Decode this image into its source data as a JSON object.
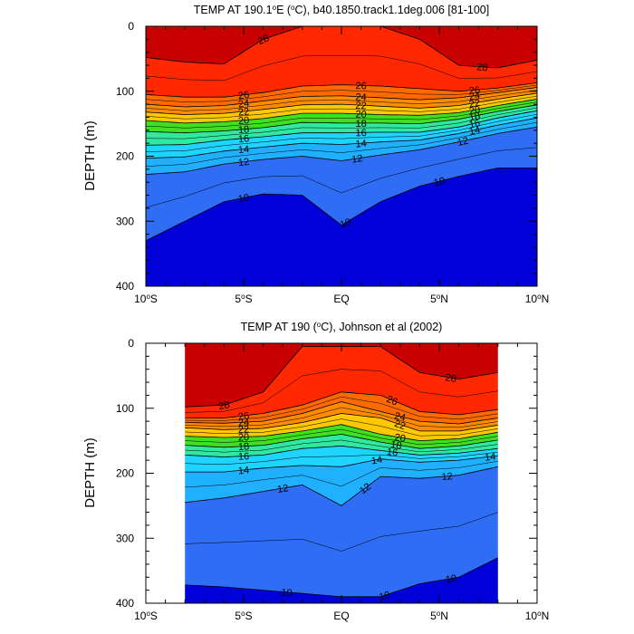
{
  "figure": {
    "panels": [
      {
        "title_pre": "TEMP AT 190.1",
        "title_sup": "o",
        "title_post": "E (",
        "title_sup2": "o",
        "title_end": "C), b40.1850.track1.1deg.006 [81-100]"
      },
      {
        "title_pre": "TEMP AT 190 (",
        "title_sup": "o",
        "title_post": "C), Johnson et al (2002)"
      }
    ]
  },
  "colors": {
    "scale": [
      "#0000d8",
      "#1a3ff0",
      "#2f6df5",
      "#2f8ff8",
      "#1fb0ff",
      "#1fd4ff",
      "#2ee8e0",
      "#30e8a0",
      "#10d850",
      "#40e020",
      "#a8e81a",
      "#ffc800",
      "#ffaa00",
      "#ff8c00",
      "#ff6a00",
      "#ff4a00",
      "#ff2800",
      "#e61400",
      "#c80000"
    ],
    "contour_line": "#000000"
  },
  "chart_data": [
    {
      "type": "contour",
      "ylabel": "DEPTH (m)",
      "xlabel": "",
      "xlim": [
        -10,
        10
      ],
      "ylim": [
        0,
        400
      ],
      "y_inverted": true,
      "x_tick_labels": [
        {
          "x": -10,
          "main": "10",
          "sup": "o",
          "tail": "S"
        },
        {
          "x": -5,
          "main": "5",
          "sup": "o",
          "tail": "S"
        },
        {
          "x": 0,
          "main": "EQ",
          "sup": "",
          "tail": ""
        },
        {
          "x": 5,
          "main": "5",
          "sup": "o",
          "tail": "N"
        },
        {
          "x": 10,
          "main": "10",
          "sup": "o",
          "tail": "N"
        }
      ],
      "y_ticks": [
        0,
        100,
        200,
        300,
        400
      ],
      "data_extent_x": [
        -10,
        10
      ],
      "contour_levels": [
        10,
        12,
        14,
        16,
        18,
        20,
        22,
        24,
        26,
        28
      ],
      "isotherm_depths_x": [
        -10,
        -8,
        -6,
        -4,
        -2,
        0,
        2,
        4,
        6,
        8,
        10
      ],
      "isotherm_depths": {
        "28": [
          48,
          55,
          58,
          20,
          0,
          0,
          0,
          20,
          60,
          64,
          52
        ],
        "26": [
          105,
          109,
          109,
          102,
          92,
          90,
          92,
          96,
          100,
          95,
          87
        ],
        "24": [
          120,
          124,
          122,
          115,
          108,
          107,
          110,
          113,
          110,
          102,
          94
        ],
        "22": [
          132,
          136,
          134,
          128,
          121,
          120,
          123,
          126,
          122,
          112,
          103
        ],
        "20": [
          145,
          149,
          147,
          142,
          134,
          134,
          136,
          137,
          133,
          122,
          112
        ],
        "18": [
          162,
          164,
          161,
          156,
          148,
          149,
          149,
          150,
          143,
          131,
          121
        ],
        "16": [
          183,
          182,
          175,
          170,
          164,
          164,
          163,
          163,
          155,
          141,
          130
        ],
        "14": [
          203,
          201,
          192,
          186,
          180,
          182,
          178,
          175,
          165,
          152,
          141
        ],
        "12": [
          228,
          224,
          212,
          205,
          200,
          207,
          198,
          190,
          178,
          165,
          155
        ],
        "10": [
          330,
          300,
          270,
          258,
          260,
          306,
          270,
          246,
          231,
          218,
          218
        ]
      },
      "isotherm_labels": [
        {
          "level": 28,
          "x": -4.0
        },
        {
          "level": 28,
          "x": 7.2
        },
        {
          "level": 26,
          "x": -5.0
        },
        {
          "level": 26,
          "x": 1.0
        },
        {
          "level": 26,
          "x": 6.8
        },
        {
          "level": 24,
          "x": -5.0
        },
        {
          "level": 24,
          "x": 1.0
        },
        {
          "level": 24,
          "x": 6.8
        },
        {
          "level": 22,
          "x": -5.0
        },
        {
          "level": 22,
          "x": 1.0
        },
        {
          "level": 22,
          "x": 6.8
        },
        {
          "level": 20,
          "x": -5.0
        },
        {
          "level": 20,
          "x": 1.0
        },
        {
          "level": 20,
          "x": 6.8
        },
        {
          "level": 18,
          "x": -5.0
        },
        {
          "level": 18,
          "x": 1.0
        },
        {
          "level": 18,
          "x": 6.8
        },
        {
          "level": 16,
          "x": -5.0
        },
        {
          "level": 16,
          "x": 1.0
        },
        {
          "level": 16,
          "x": 6.8
        },
        {
          "level": 14,
          "x": -5.0
        },
        {
          "level": 14,
          "x": 1.0
        },
        {
          "level": 14,
          "x": 6.8
        },
        {
          "level": 12,
          "x": -5.0
        },
        {
          "level": 12,
          "x": 0.8
        },
        {
          "level": 12,
          "x": 6.2
        },
        {
          "level": 10,
          "x": -5.0
        },
        {
          "level": 10,
          "x": 0.2
        },
        {
          "level": 10,
          "x": 5.0
        }
      ]
    },
    {
      "type": "contour",
      "ylabel": "DEPTH (m)",
      "xlabel": "",
      "xlim": [
        -10,
        10
      ],
      "ylim": [
        0,
        400
      ],
      "y_inverted": true,
      "x_tick_labels": [
        {
          "x": -10,
          "main": "10",
          "sup": "o",
          "tail": "S"
        },
        {
          "x": -5,
          "main": "5",
          "sup": "o",
          "tail": "S"
        },
        {
          "x": 0,
          "main": "EQ",
          "sup": "",
          "tail": ""
        },
        {
          "x": 5,
          "main": "5",
          "sup": "o",
          "tail": "N"
        },
        {
          "x": 10,
          "main": "10",
          "sup": "o",
          "tail": "N"
        }
      ],
      "y_ticks": [
        0,
        100,
        200,
        300,
        400
      ],
      "data_extent_x": [
        -8,
        8
      ],
      "contour_levels": [
        10,
        12,
        14,
        16,
        18,
        20,
        22,
        24,
        26,
        28
      ],
      "isotherm_depths_x": [
        -8,
        -6,
        -4,
        -2,
        0,
        2,
        4,
        6,
        8
      ],
      "isotherm_depths": {
        "28": [
          98,
          95,
          75,
          5,
          5,
          5,
          45,
          55,
          45
        ],
        "26": [
          115,
          115,
          108,
          95,
          75,
          80,
          105,
          110,
          102
        ],
        "24": [
          122,
          123,
          120,
          108,
          90,
          105,
          120,
          124,
          115
        ],
        "22": [
          130,
          133,
          131,
          122,
          108,
          115,
          135,
          135,
          126
        ],
        "20": [
          143,
          145,
          143,
          135,
          125,
          140,
          150,
          147,
          137
        ],
        "18": [
          157,
          160,
          157,
          147,
          140,
          152,
          162,
          158,
          149
        ],
        "16": [
          172,
          175,
          172,
          162,
          158,
          165,
          172,
          169,
          162
        ],
        "14": [
          198,
          198,
          192,
          188,
          190,
          178,
          183,
          180,
          173
        ],
        "12": [
          245,
          238,
          228,
          218,
          250,
          205,
          208,
          203,
          190
        ],
        "10": [
          372,
          375,
          380,
          385,
          390,
          390,
          370,
          360,
          330
        ]
      },
      "isotherm_labels": [
        {
          "level": 28,
          "x": -6.0
        },
        {
          "level": 28,
          "x": 5.6
        },
        {
          "level": 26,
          "x": -5.0
        },
        {
          "level": 26,
          "x": 2.6
        },
        {
          "level": 24,
          "x": -5.0
        },
        {
          "level": 24,
          "x": 3.0
        },
        {
          "level": 22,
          "x": -5.0
        },
        {
          "level": 22,
          "x": 3.0
        },
        {
          "level": 20,
          "x": -5.0
        },
        {
          "level": 20,
          "x": 3.0
        },
        {
          "level": 18,
          "x": -5.0
        },
        {
          "level": 18,
          "x": 2.8
        },
        {
          "level": 16,
          "x": -5.0
        },
        {
          "level": 16,
          "x": 2.6
        },
        {
          "level": 14,
          "x": -5.0
        },
        {
          "level": 14,
          "x": 1.8
        },
        {
          "level": 14,
          "x": 7.6
        },
        {
          "level": 12,
          "x": -3.0
        },
        {
          "level": 12,
          "x": 1.2
        },
        {
          "level": 12,
          "x": 5.4
        },
        {
          "level": 10,
          "x": -2.8
        },
        {
          "level": 10,
          "x": 2.2
        },
        {
          "level": 10,
          "x": 5.6
        }
      ]
    }
  ]
}
